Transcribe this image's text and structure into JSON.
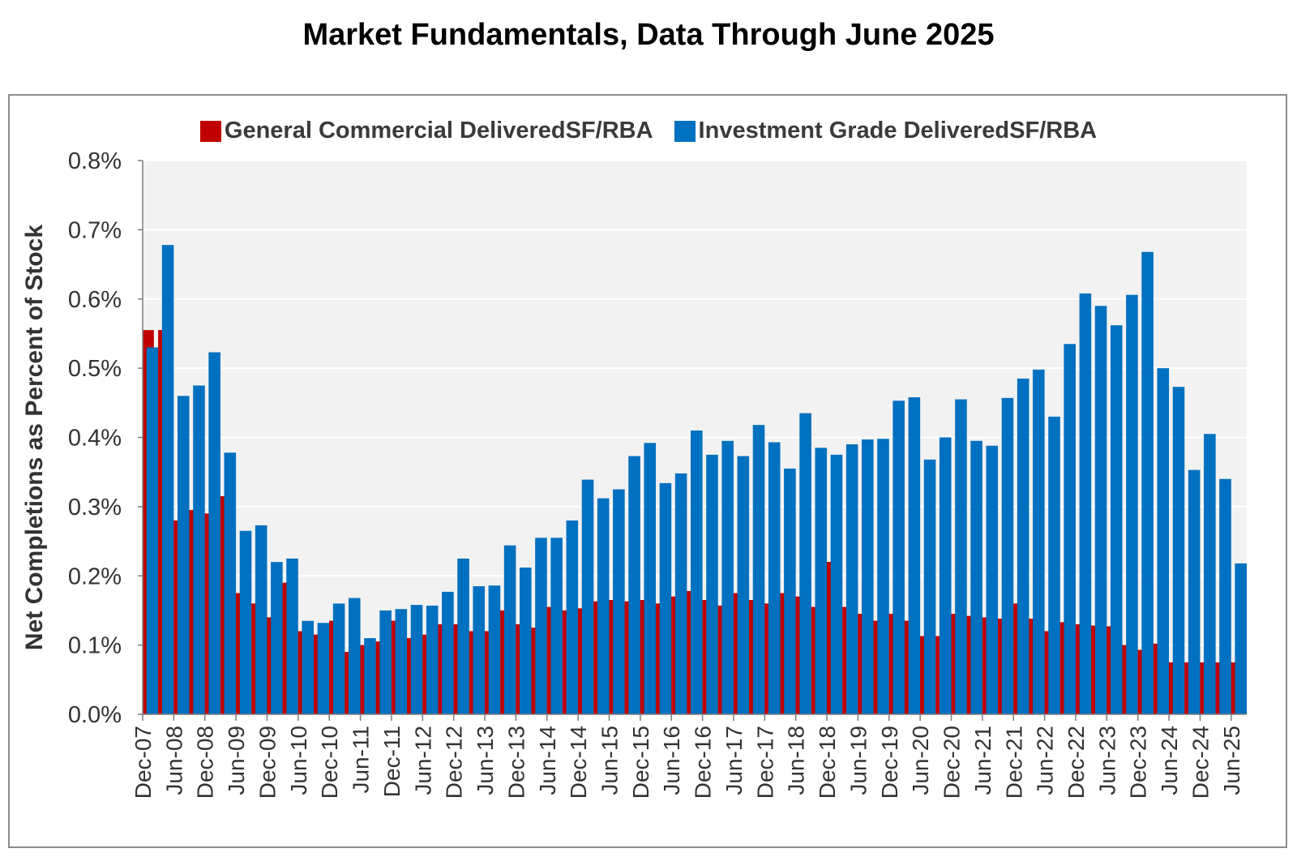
{
  "title": "Market Fundamentals, Data Through June 2025",
  "colors": {
    "general": "#c00000",
    "investment": "#0070c0",
    "plot_bg": "#f2f2f2",
    "grid": "#ffffff"
  },
  "chart_data": {
    "type": "bar",
    "ylabel": "Net Completions as Percent of Stock",
    "ylim": [
      0,
      0.8
    ],
    "yticks": [
      "0.0%",
      "0.1%",
      "0.2%",
      "0.3%",
      "0.4%",
      "0.5%",
      "0.6%",
      "0.7%",
      "0.8%"
    ],
    "grid": true,
    "legend_position": "top-center",
    "categories": [
      "Dec-07",
      "Mar-08",
      "Jun-08",
      "Sep-08",
      "Dec-08",
      "Mar-09",
      "Jun-09",
      "Sep-09",
      "Dec-09",
      "Mar-10",
      "Jun-10",
      "Sep-10",
      "Dec-10",
      "Mar-11",
      "Jun-11",
      "Sep-11",
      "Dec-11",
      "Mar-12",
      "Jun-12",
      "Sep-12",
      "Dec-12",
      "Mar-13",
      "Jun-13",
      "Sep-13",
      "Dec-13",
      "Mar-14",
      "Jun-14",
      "Sep-14",
      "Dec-14",
      "Mar-15",
      "Jun-15",
      "Sep-15",
      "Dec-15",
      "Mar-16",
      "Jun-16",
      "Sep-16",
      "Dec-16",
      "Mar-17",
      "Jun-17",
      "Sep-17",
      "Dec-17",
      "Mar-18",
      "Jun-18",
      "Sep-18",
      "Dec-18",
      "Mar-19",
      "Jun-19",
      "Sep-19",
      "Dec-19",
      "Mar-20",
      "Jun-20",
      "Sep-20",
      "Dec-20",
      "Mar-21",
      "Jun-21",
      "Sep-21",
      "Dec-21",
      "Mar-22",
      "Jun-22",
      "Sep-22",
      "Dec-22",
      "Mar-23",
      "Jun-23",
      "Sep-23",
      "Dec-23",
      "Mar-24",
      "Jun-24",
      "Sep-24",
      "Dec-24",
      "Mar-25",
      "Jun-25"
    ],
    "xtick_labels": [
      "Dec-07",
      "Jun-08",
      "Dec-08",
      "Jun-09",
      "Dec-09",
      "Jun-10",
      "Dec-10",
      "Jun-11",
      "Dec-11",
      "Jun-12",
      "Dec-12",
      "Jun-13",
      "Dec-13",
      "Jun-14",
      "Dec-14",
      "Jun-15",
      "Dec-15",
      "Jun-16",
      "Dec-16",
      "Jun-17",
      "Dec-17",
      "Jun-18",
      "Dec-18",
      "Jun-19",
      "Dec-19",
      "Jun-20",
      "Dec-20",
      "Jun-21",
      "Dec-21",
      "Jun-22",
      "Dec-22",
      "Jun-23",
      "Dec-23",
      "Jun-24",
      "Dec-24",
      "Jun-25"
    ],
    "series": [
      {
        "name": "General Commercial DeliveredSF/RBA",
        "values": [
          0.555,
          0.555,
          0.28,
          0.295,
          0.29,
          0.315,
          0.175,
          0.16,
          0.14,
          0.19,
          0.12,
          0.115,
          0.135,
          0.09,
          0.1,
          0.105,
          0.135,
          0.11,
          0.115,
          0.13,
          0.13,
          0.12,
          0.12,
          0.15,
          0.13,
          0.125,
          0.155,
          0.15,
          0.153,
          0.163,
          0.165,
          0.163,
          0.165,
          0.16,
          0.17,
          0.178,
          0.165,
          0.157,
          0.175,
          0.165,
          0.16,
          0.175,
          0.17,
          0.155,
          0.22,
          0.155,
          0.145,
          0.135,
          0.145,
          0.135,
          0.113,
          0.113,
          0.145,
          0.142,
          0.14,
          0.138,
          0.16,
          0.138,
          0.12,
          0.133,
          0.13,
          0.128,
          0.127,
          0.1,
          0.093,
          0.102,
          0.075,
          0.075,
          0.075,
          0.075,
          0.075
        ]
      },
      {
        "name": "Investment Grade DeliveredSF/RBA",
        "values": [
          0.53,
          0.678,
          0.46,
          0.475,
          0.523,
          0.378,
          0.265,
          0.273,
          0.22,
          0.225,
          0.135,
          0.132,
          0.16,
          0.168,
          0.11,
          0.15,
          0.152,
          0.158,
          0.157,
          0.177,
          0.225,
          0.185,
          0.186,
          0.244,
          0.212,
          0.255,
          0.255,
          0.28,
          0.339,
          0.312,
          0.325,
          0.373,
          0.392,
          0.334,
          0.348,
          0.41,
          0.375,
          0.395,
          0.373,
          0.418,
          0.393,
          0.355,
          0.435,
          0.385,
          0.375,
          0.39,
          0.397,
          0.398,
          0.453,
          0.458,
          0.368,
          0.4,
          0.455,
          0.395,
          0.388,
          0.457,
          0.485,
          0.498,
          0.43,
          0.535,
          0.608,
          0.59,
          0.562,
          0.606,
          0.668,
          0.5,
          0.473,
          0.353,
          0.405,
          0.34,
          0.218
        ]
      }
    ]
  }
}
